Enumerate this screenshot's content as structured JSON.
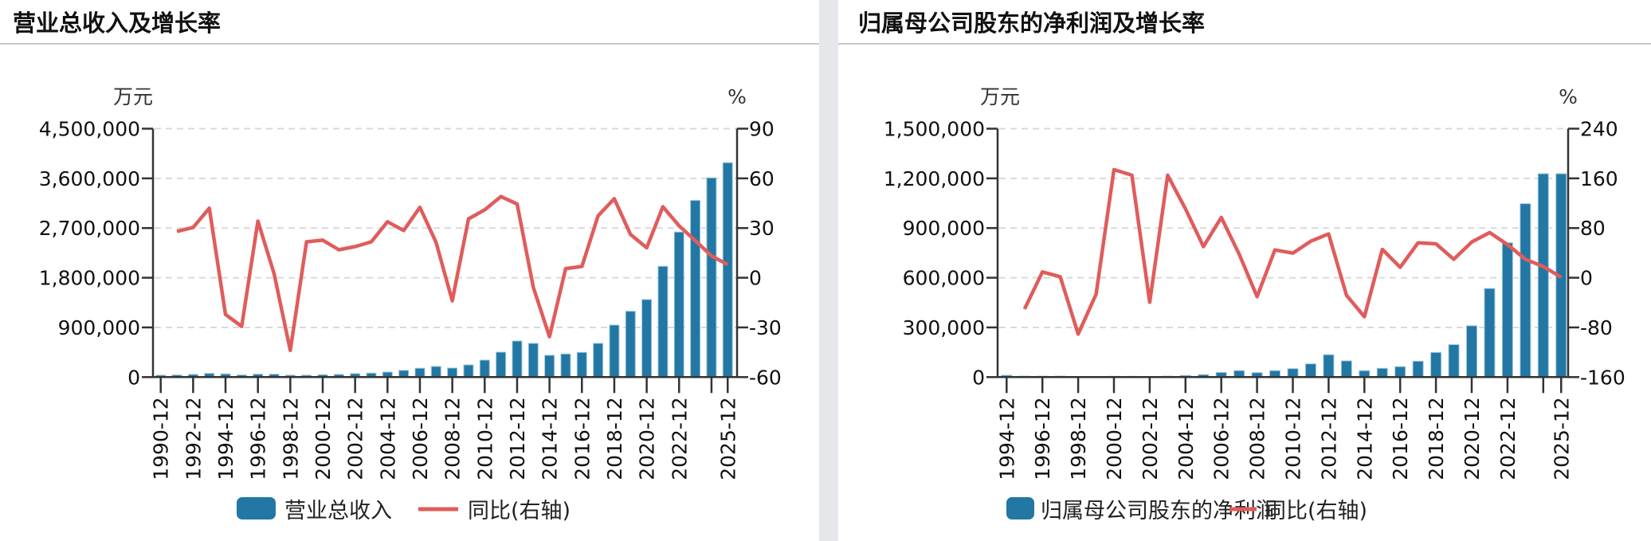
{
  "colors": {
    "bar": "#2277a4",
    "bar_edge": "#9cc7dc",
    "line": "#e05c5c",
    "axis": "#333333",
    "grid": "#d9d9d9",
    "separator": "#e6e7ea"
  },
  "chart_data": [
    {
      "type": "bar+line",
      "title": "营业总收入及增长率",
      "left_unit": "万元",
      "right_unit": "%",
      "ylim": [
        0,
        4500000
      ],
      "yticks": [
        0,
        900000,
        1800000,
        2700000,
        3600000,
        4500000
      ],
      "ytick_labels": [
        "0",
        "900,000",
        "1,800,000",
        "2,700,000",
        "3,600,000",
        "4,500,000"
      ],
      "y2lim": [
        -60,
        90
      ],
      "y2ticks": [
        -60,
        -30,
        0,
        30,
        60,
        90
      ],
      "y2tick_labels": [
        "-60",
        "-30",
        "0",
        "30",
        "60",
        "90"
      ],
      "grid": true,
      "legend_position": "bottom",
      "categories": [
        "1990-12",
        "1991-12",
        "1992-12",
        "1993-12",
        "1994-12",
        "1995-12",
        "1996-12",
        "1997-12",
        "1998-12",
        "1999-12",
        "2000-12",
        "2001-12",
        "2002-12",
        "2003-12",
        "2004-12",
        "2005-12",
        "2006-12",
        "2007-12",
        "2008-12",
        "2009-12",
        "2010-12",
        "2011-12",
        "2012-12",
        "2013-12",
        "2014-12",
        "2015-12",
        "2016-12",
        "2017-12",
        "2018-12",
        "2019-12",
        "2020-12",
        "2021-12",
        "2022-12",
        "2023-12",
        "2024-12",
        "2025-12"
      ],
      "xtick_labels": [
        "1990-12",
        "1992-12",
        "1994-12",
        "1996-12",
        "1998-12",
        "2000-12",
        "2002-12",
        "2004-12",
        "2006-12",
        "2008-12",
        "2010-12",
        "2012-12",
        "2014-12",
        "2016-12",
        "2018-12",
        "2020-12",
        "2022-12",
        "2025-12"
      ],
      "series": [
        {
          "name": "营业总收入",
          "kind": "bar",
          "axis": "left",
          "values": [
            34000,
            38000,
            48000,
            67000,
            58000,
            38000,
            53000,
            53000,
            34000,
            34000,
            43000,
            48000,
            63000,
            72000,
            91000,
            122000,
            160000,
            193000,
            164000,
            221000,
            308000,
            452000,
            654000,
            611000,
            395000,
            419000,
            448000,
            611000,
            943000,
            1193000,
            1405000,
            2007000,
            2628000,
            3200000,
            3609000,
            3884000
          ]
        },
        {
          "name": "同比(右轴)",
          "kind": "line",
          "axis": "right",
          "values": [
            null,
            28.0,
            30.4,
            42.0,
            -22.2,
            -29.4,
            34.2,
            2.4,
            -43.9,
            21.7,
            22.7,
            16.9,
            18.8,
            21.7,
            33.8,
            28.5,
            42.5,
            21.3,
            -13.9,
            35.6,
            41.0,
            49.0,
            44.5,
            -5.8,
            -35.6,
            5.5,
            6.8,
            37.4,
            47.7,
            26.1,
            18.1,
            42.9,
            31.3,
            22.4,
            13.2,
            7.9
          ]
        }
      ]
    },
    {
      "type": "bar+line",
      "title": "归属母公司股东的净利润及增长率",
      "left_unit": "万元",
      "right_unit": "%",
      "ylim": [
        0,
        1500000
      ],
      "yticks": [
        0,
        300000,
        600000,
        900000,
        1200000,
        1500000
      ],
      "ytick_labels": [
        "0",
        "300,000",
        "600,000",
        "900,000",
        "1,200,000",
        "1,500,000"
      ],
      "y2lim": [
        -160,
        240
      ],
      "y2ticks": [
        -160,
        -80,
        0,
        80,
        160,
        240
      ],
      "y2tick_labels": [
        "-160",
        "-80",
        "0",
        "80",
        "160",
        "240"
      ],
      "grid": true,
      "legend_position": "bottom",
      "categories": [
        "1994-12",
        "1995-12",
        "1996-12",
        "1997-12",
        "1998-12",
        "1999-12",
        "2000-12",
        "2001-12",
        "2002-12",
        "2003-12",
        "2004-12",
        "2005-12",
        "2006-12",
        "2007-12",
        "2008-12",
        "2009-12",
        "2010-12",
        "2011-12",
        "2012-12",
        "2013-12",
        "2014-12",
        "2015-12",
        "2016-12",
        "2017-12",
        "2018-12",
        "2019-12",
        "2020-12",
        "2021-12",
        "2022-12",
        "2023-12",
        "2024-12",
        "2025-12"
      ],
      "xtick_labels": [
        "1994-12",
        "1996-12",
        "1998-12",
        "2000-12",
        "2002-12",
        "2004-12",
        "2006-12",
        "2008-12",
        "2010-12",
        "2012-12",
        "2014-12",
        "2016-12",
        "2018-12",
        "2020-12",
        "2022-12",
        "2025-12"
      ],
      "series": [
        {
          "name": "归属母公司股东的净利润",
          "kind": "bar",
          "axis": "left",
          "values": [
            11000,
            6000,
            6000,
            6000,
            3000,
            2000,
            5000,
            5000,
            4000,
            6000,
            10000,
            15000,
            28000,
            39000,
            27000,
            39000,
            51000,
            80000,
            135000,
            98000,
            39000,
            53000,
            63000,
            96000,
            149000,
            196000,
            310000,
            535000,
            811000,
            1047000,
            1228000,
            1228000
          ]
        },
        {
          "name": "同比(右轴)",
          "kind": "line",
          "axis": "right",
          "values": [
            null,
            -50.5,
            9.4,
            1.7,
            -90.7,
            -26.5,
            174.1,
            165.1,
            -39.4,
            165.1,
            110.8,
            50.1,
            97.1,
            38.1,
            -30.4,
            44.7,
            39.6,
            58.9,
            70.5,
            -28.4,
            -62.8,
            45.6,
            16.8,
            56.3,
            54.6,
            29.7,
            57.6,
            72.7,
            53.3,
            29.7,
            18.1,
            0.9
          ]
        }
      ]
    }
  ]
}
